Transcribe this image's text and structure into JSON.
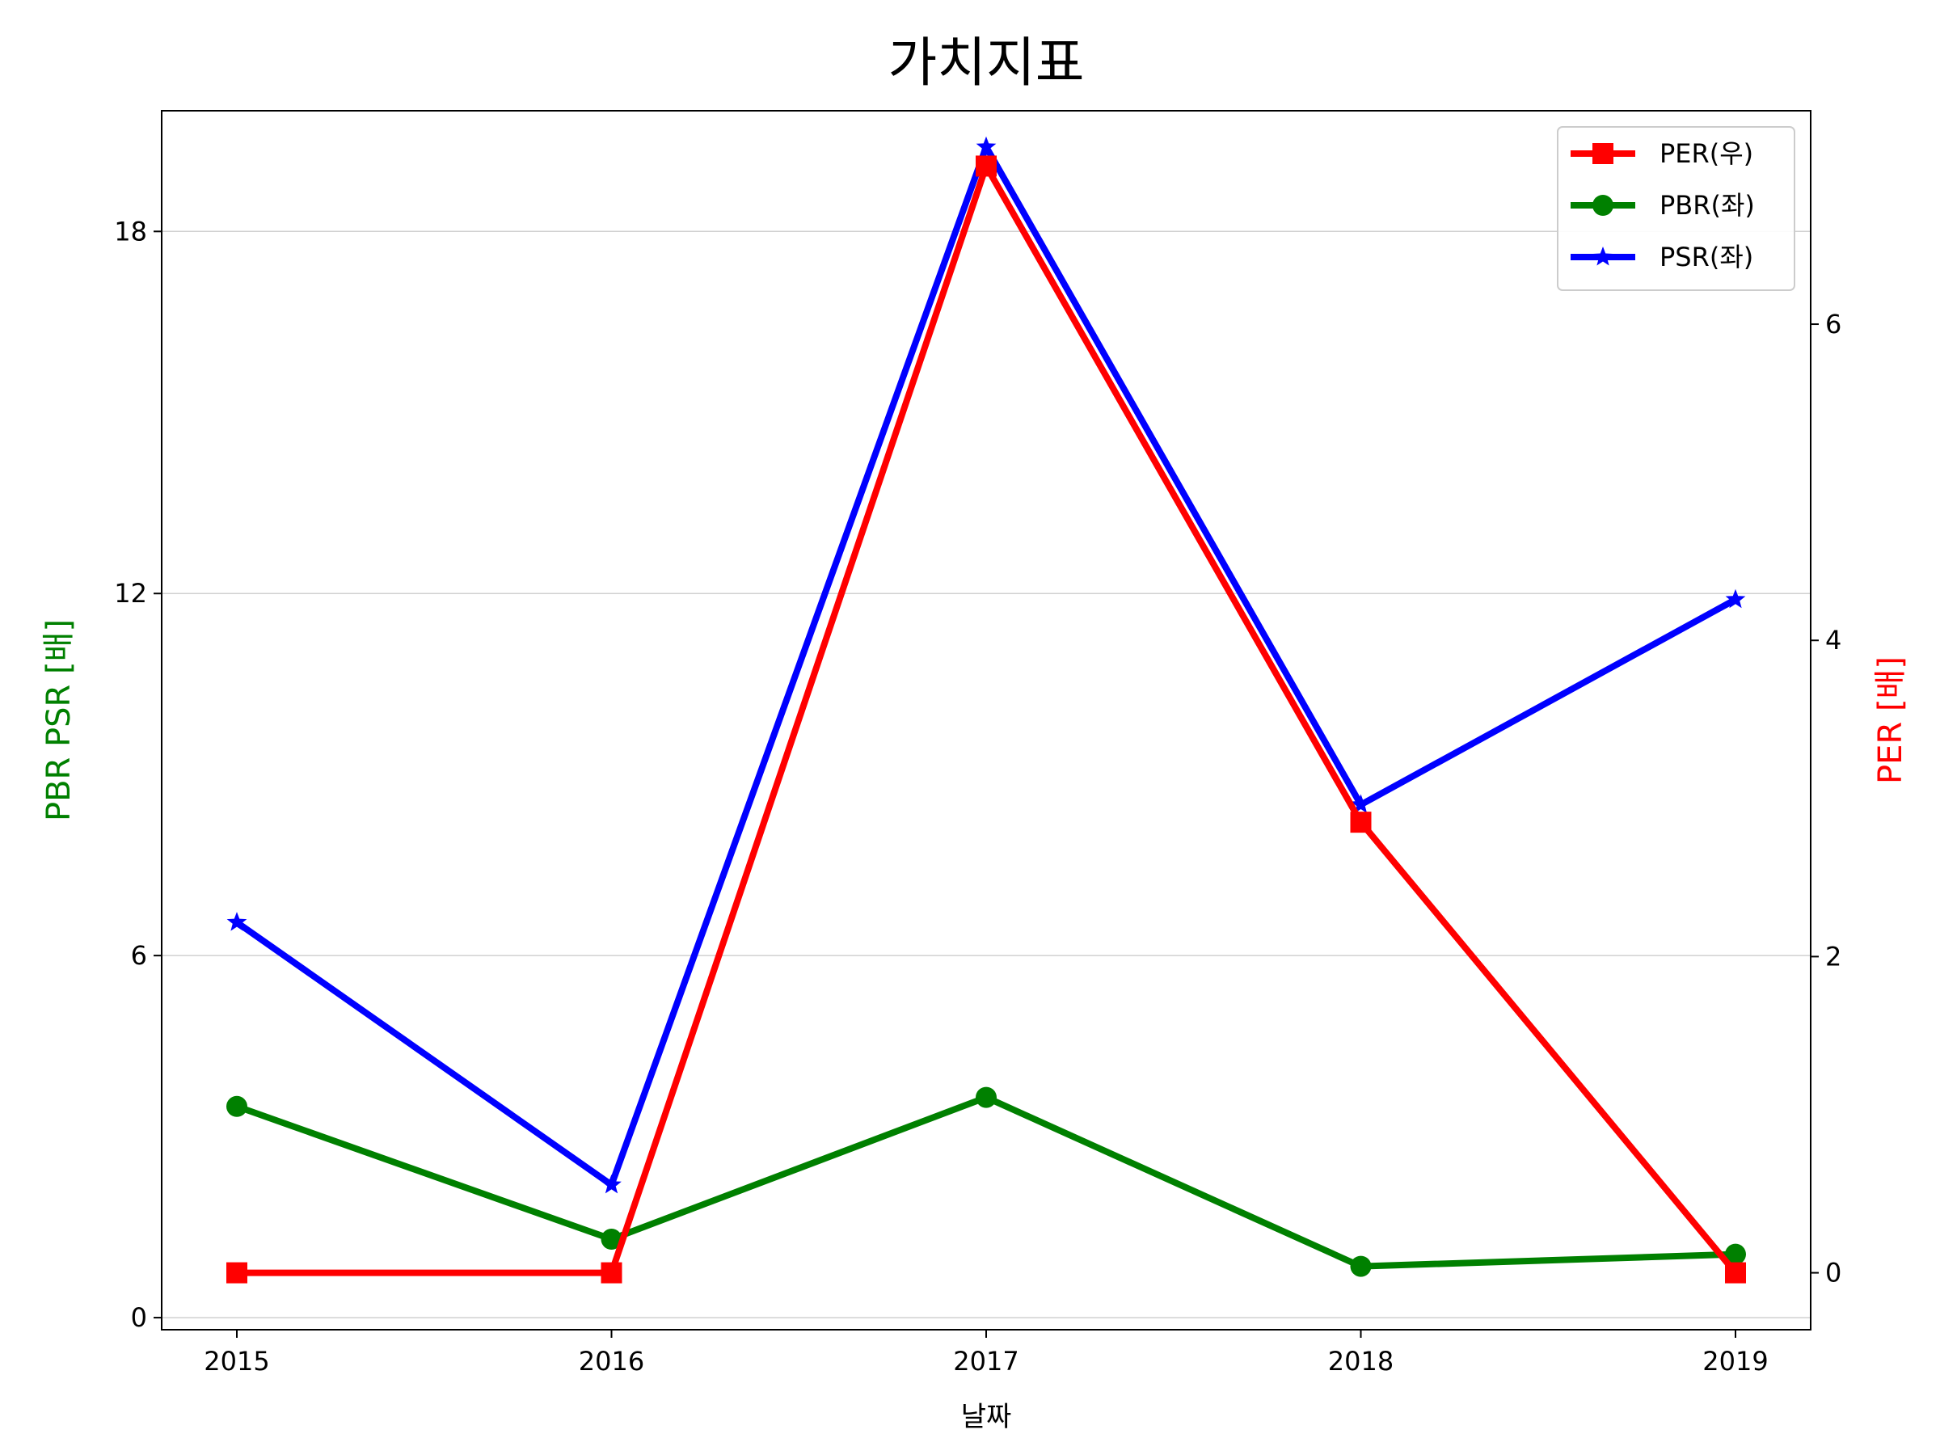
{
  "chart_data": {
    "type": "line",
    "title": "가치지표",
    "xlabel": "날짜",
    "ylabel_left": "PBR PSR [배]",
    "ylabel_right": "PER [배]",
    "categories": [
      "2015",
      "2016",
      "2017",
      "2018",
      "2019"
    ],
    "left_axis": {
      "ylim": [
        -0.2,
        20.0
      ],
      "ticks": [
        0,
        6,
        12,
        18
      ],
      "color": "#008000"
    },
    "right_axis": {
      "ylim": [
        -0.36,
        7.35
      ],
      "ticks": [
        0,
        2,
        4,
        6
      ],
      "color": "#ff0000"
    },
    "grid": true,
    "legend_position": "top-right",
    "series": [
      {
        "name": "PER(우)",
        "axis": "right",
        "color": "#ff0000",
        "marker": "square",
        "values": [
          0.0,
          0.0,
          7.0,
          2.85,
          0.0
        ]
      },
      {
        "name": "PBR(좌)",
        "axis": "left",
        "color": "#008000",
        "marker": "circle",
        "values": [
          3.5,
          1.3,
          3.65,
          0.85,
          1.05
        ]
      },
      {
        "name": "PSR(좌)",
        "axis": "left",
        "color": "#0000ff",
        "marker": "star",
        "values": [
          6.55,
          2.2,
          19.4,
          8.5,
          11.9
        ]
      }
    ]
  }
}
